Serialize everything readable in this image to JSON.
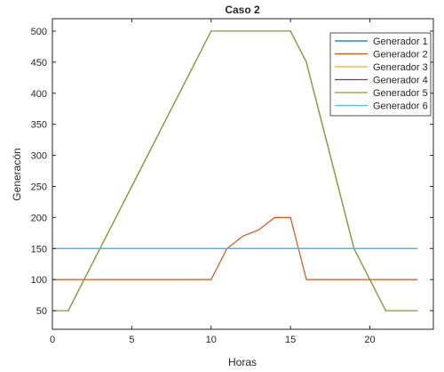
{
  "chart_data": {
    "type": "line",
    "title": "Caso 2",
    "xlabel": "Horas",
    "ylabel": "Generacón",
    "xlim": [
      0,
      24
    ],
    "ylim": [
      20,
      520
    ],
    "xticks": [
      0,
      5,
      10,
      15,
      20
    ],
    "yticks": [
      50,
      100,
      150,
      200,
      250,
      300,
      350,
      400,
      450,
      500
    ],
    "grid": false,
    "legend_position": "top-right",
    "x": [
      0,
      1,
      2,
      3,
      4,
      5,
      6,
      7,
      8,
      9,
      10,
      11,
      12,
      13,
      14,
      15,
      16,
      17,
      18,
      19,
      20,
      21,
      22,
      23
    ],
    "series": [
      {
        "name": "Generador 1",
        "color": "#0072bd",
        "values": [
          150,
          150,
          150,
          150,
          150,
          150,
          150,
          150,
          150,
          150,
          150,
          150,
          150,
          150,
          150,
          150,
          150,
          150,
          150,
          150,
          150,
          150,
          150,
          150
        ]
      },
      {
        "name": "Generador 2",
        "color": "#d95319",
        "values": [
          100,
          100,
          100,
          100,
          100,
          100,
          100,
          100,
          100,
          100,
          100,
          150,
          170,
          180,
          200,
          200,
          100,
          100,
          100,
          100,
          100,
          100,
          100,
          100
        ]
      },
      {
        "name": "Generador 3",
        "color": "#edb120",
        "values": [
          50,
          50,
          100,
          150,
          200,
          250,
          300,
          350,
          400,
          450,
          500,
          500,
          500,
          500,
          500,
          500,
          450,
          350,
          250,
          150,
          100,
          50,
          50,
          50
        ]
      },
      {
        "name": "Generador 4",
        "color": "#7e2f8e",
        "values": [
          50,
          50,
          100,
          150,
          200,
          250,
          300,
          350,
          400,
          450,
          500,
          500,
          500,
          500,
          500,
          500,
          450,
          350,
          250,
          150,
          100,
          50,
          50,
          50
        ]
      },
      {
        "name": "Generador 5",
        "color": "#77ac30",
        "values": [
          50,
          50,
          100,
          150,
          200,
          250,
          300,
          350,
          400,
          450,
          500,
          500,
          500,
          500,
          500,
          500,
          450,
          350,
          250,
          150,
          100,
          50,
          50,
          50
        ]
      },
      {
        "name": "Generador 6",
        "color": "#4dbeee",
        "values": [
          150,
          150,
          150,
          150,
          150,
          150,
          150,
          150,
          150,
          150,
          150,
          150,
          150,
          150,
          150,
          150,
          150,
          150,
          150,
          150,
          150,
          150,
          150,
          150
        ]
      }
    ]
  }
}
